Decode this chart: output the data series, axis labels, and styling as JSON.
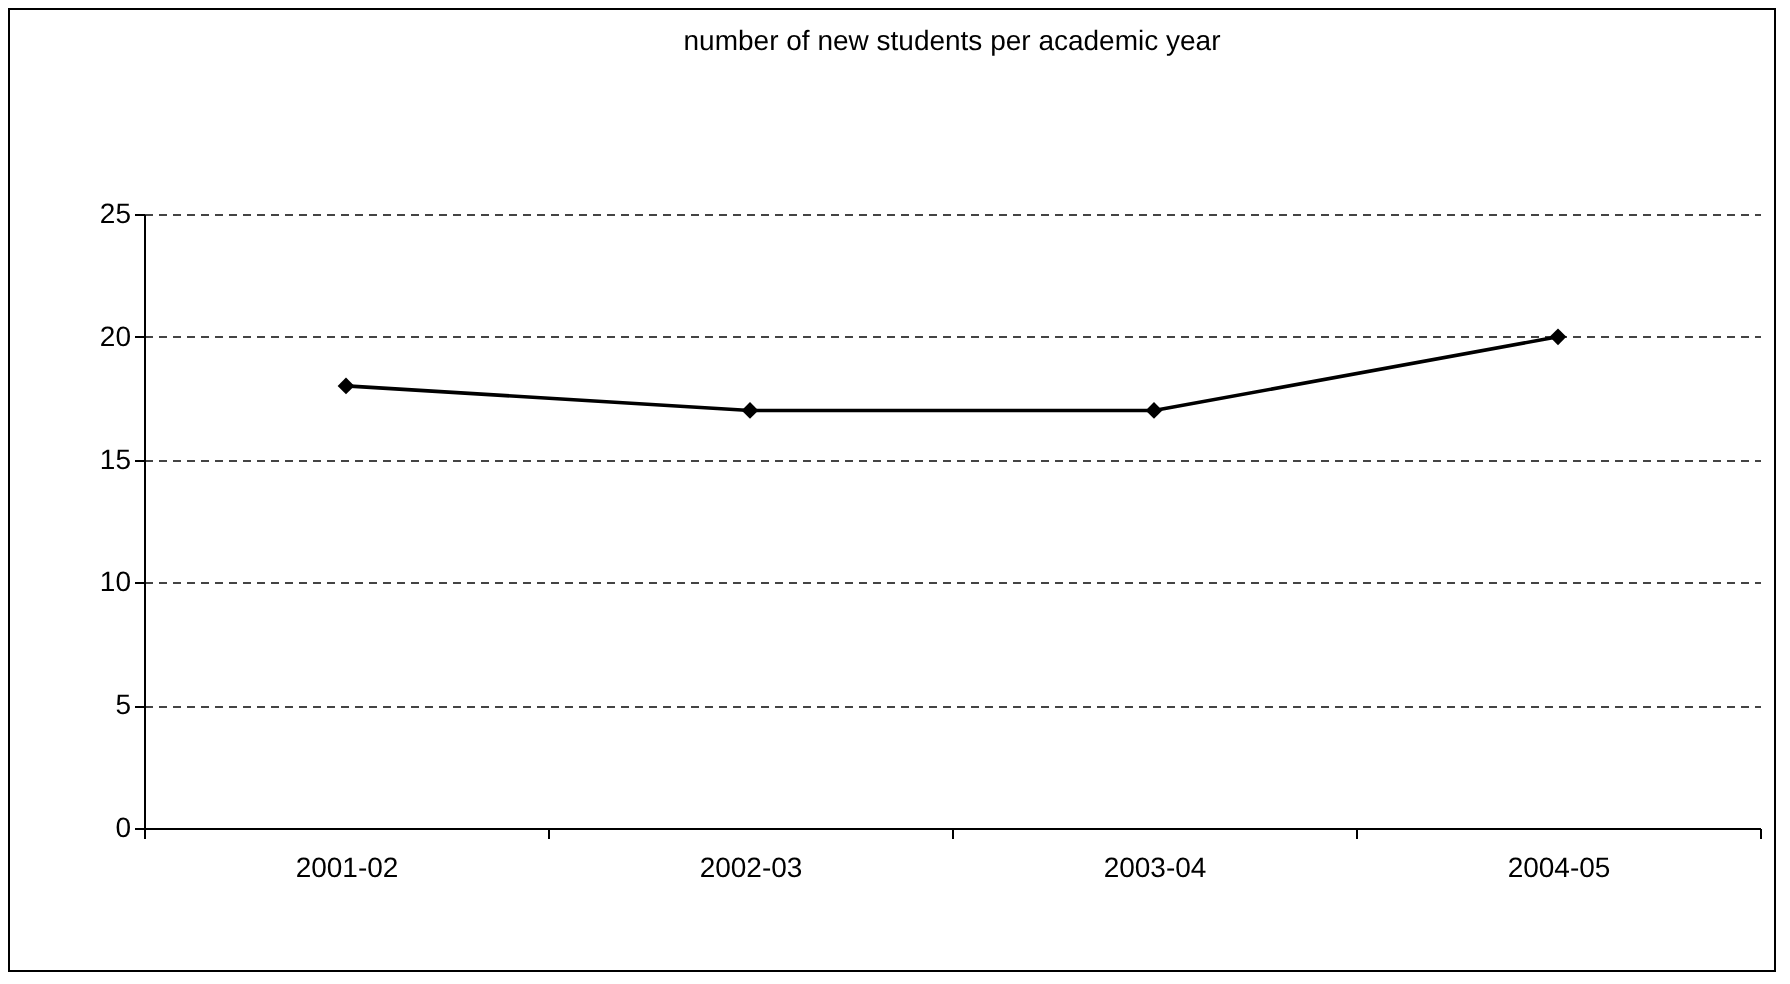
{
  "chart_data": {
    "type": "line",
    "title": "number of new students per academic year",
    "categories": [
      "2001-02",
      "2002-03",
      "2003-04",
      "2004-05"
    ],
    "series": [
      {
        "color": "#000000",
        "values": [
          18,
          17,
          17,
          20
        ]
      }
    ],
    "ylim": [
      0,
      25
    ],
    "yticks": [
      0,
      5,
      10,
      15,
      20,
      25
    ],
    "grid": "y",
    "marker": "diamond",
    "line_style": "solid"
  }
}
